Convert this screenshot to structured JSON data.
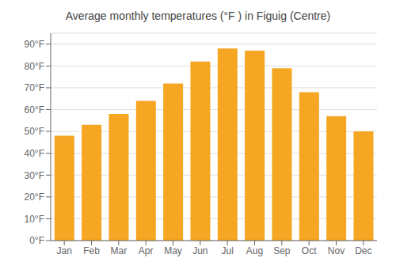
{
  "chart_data": {
    "type": "bar",
    "title": "Average monthly temperatures (°F ) in Figuig (Centre)",
    "categories": [
      "Jan",
      "Feb",
      "Mar",
      "Apr",
      "May",
      "Jun",
      "Jul",
      "Aug",
      "Sep",
      "Oct",
      "Nov",
      "Dec"
    ],
    "values": [
      48,
      53,
      58,
      64,
      72,
      82,
      88,
      87,
      79,
      68,
      57,
      50
    ],
    "color": "#F5A623",
    "ylim": [
      0,
      95
    ],
    "yticks": [
      {
        "value": 0,
        "label": "0°F"
      },
      {
        "value": 10,
        "label": "10°F"
      },
      {
        "value": 20,
        "label": "20°F"
      },
      {
        "value": 30,
        "label": "30°F"
      },
      {
        "value": 40,
        "label": "40°F"
      },
      {
        "value": 50,
        "label": "50°F"
      },
      {
        "value": 60,
        "label": "60°F"
      },
      {
        "value": 70,
        "label": "70°F"
      },
      {
        "value": 80,
        "label": "80°F"
      },
      {
        "value": 90,
        "label": "90°F"
      }
    ],
    "grid": true
  }
}
